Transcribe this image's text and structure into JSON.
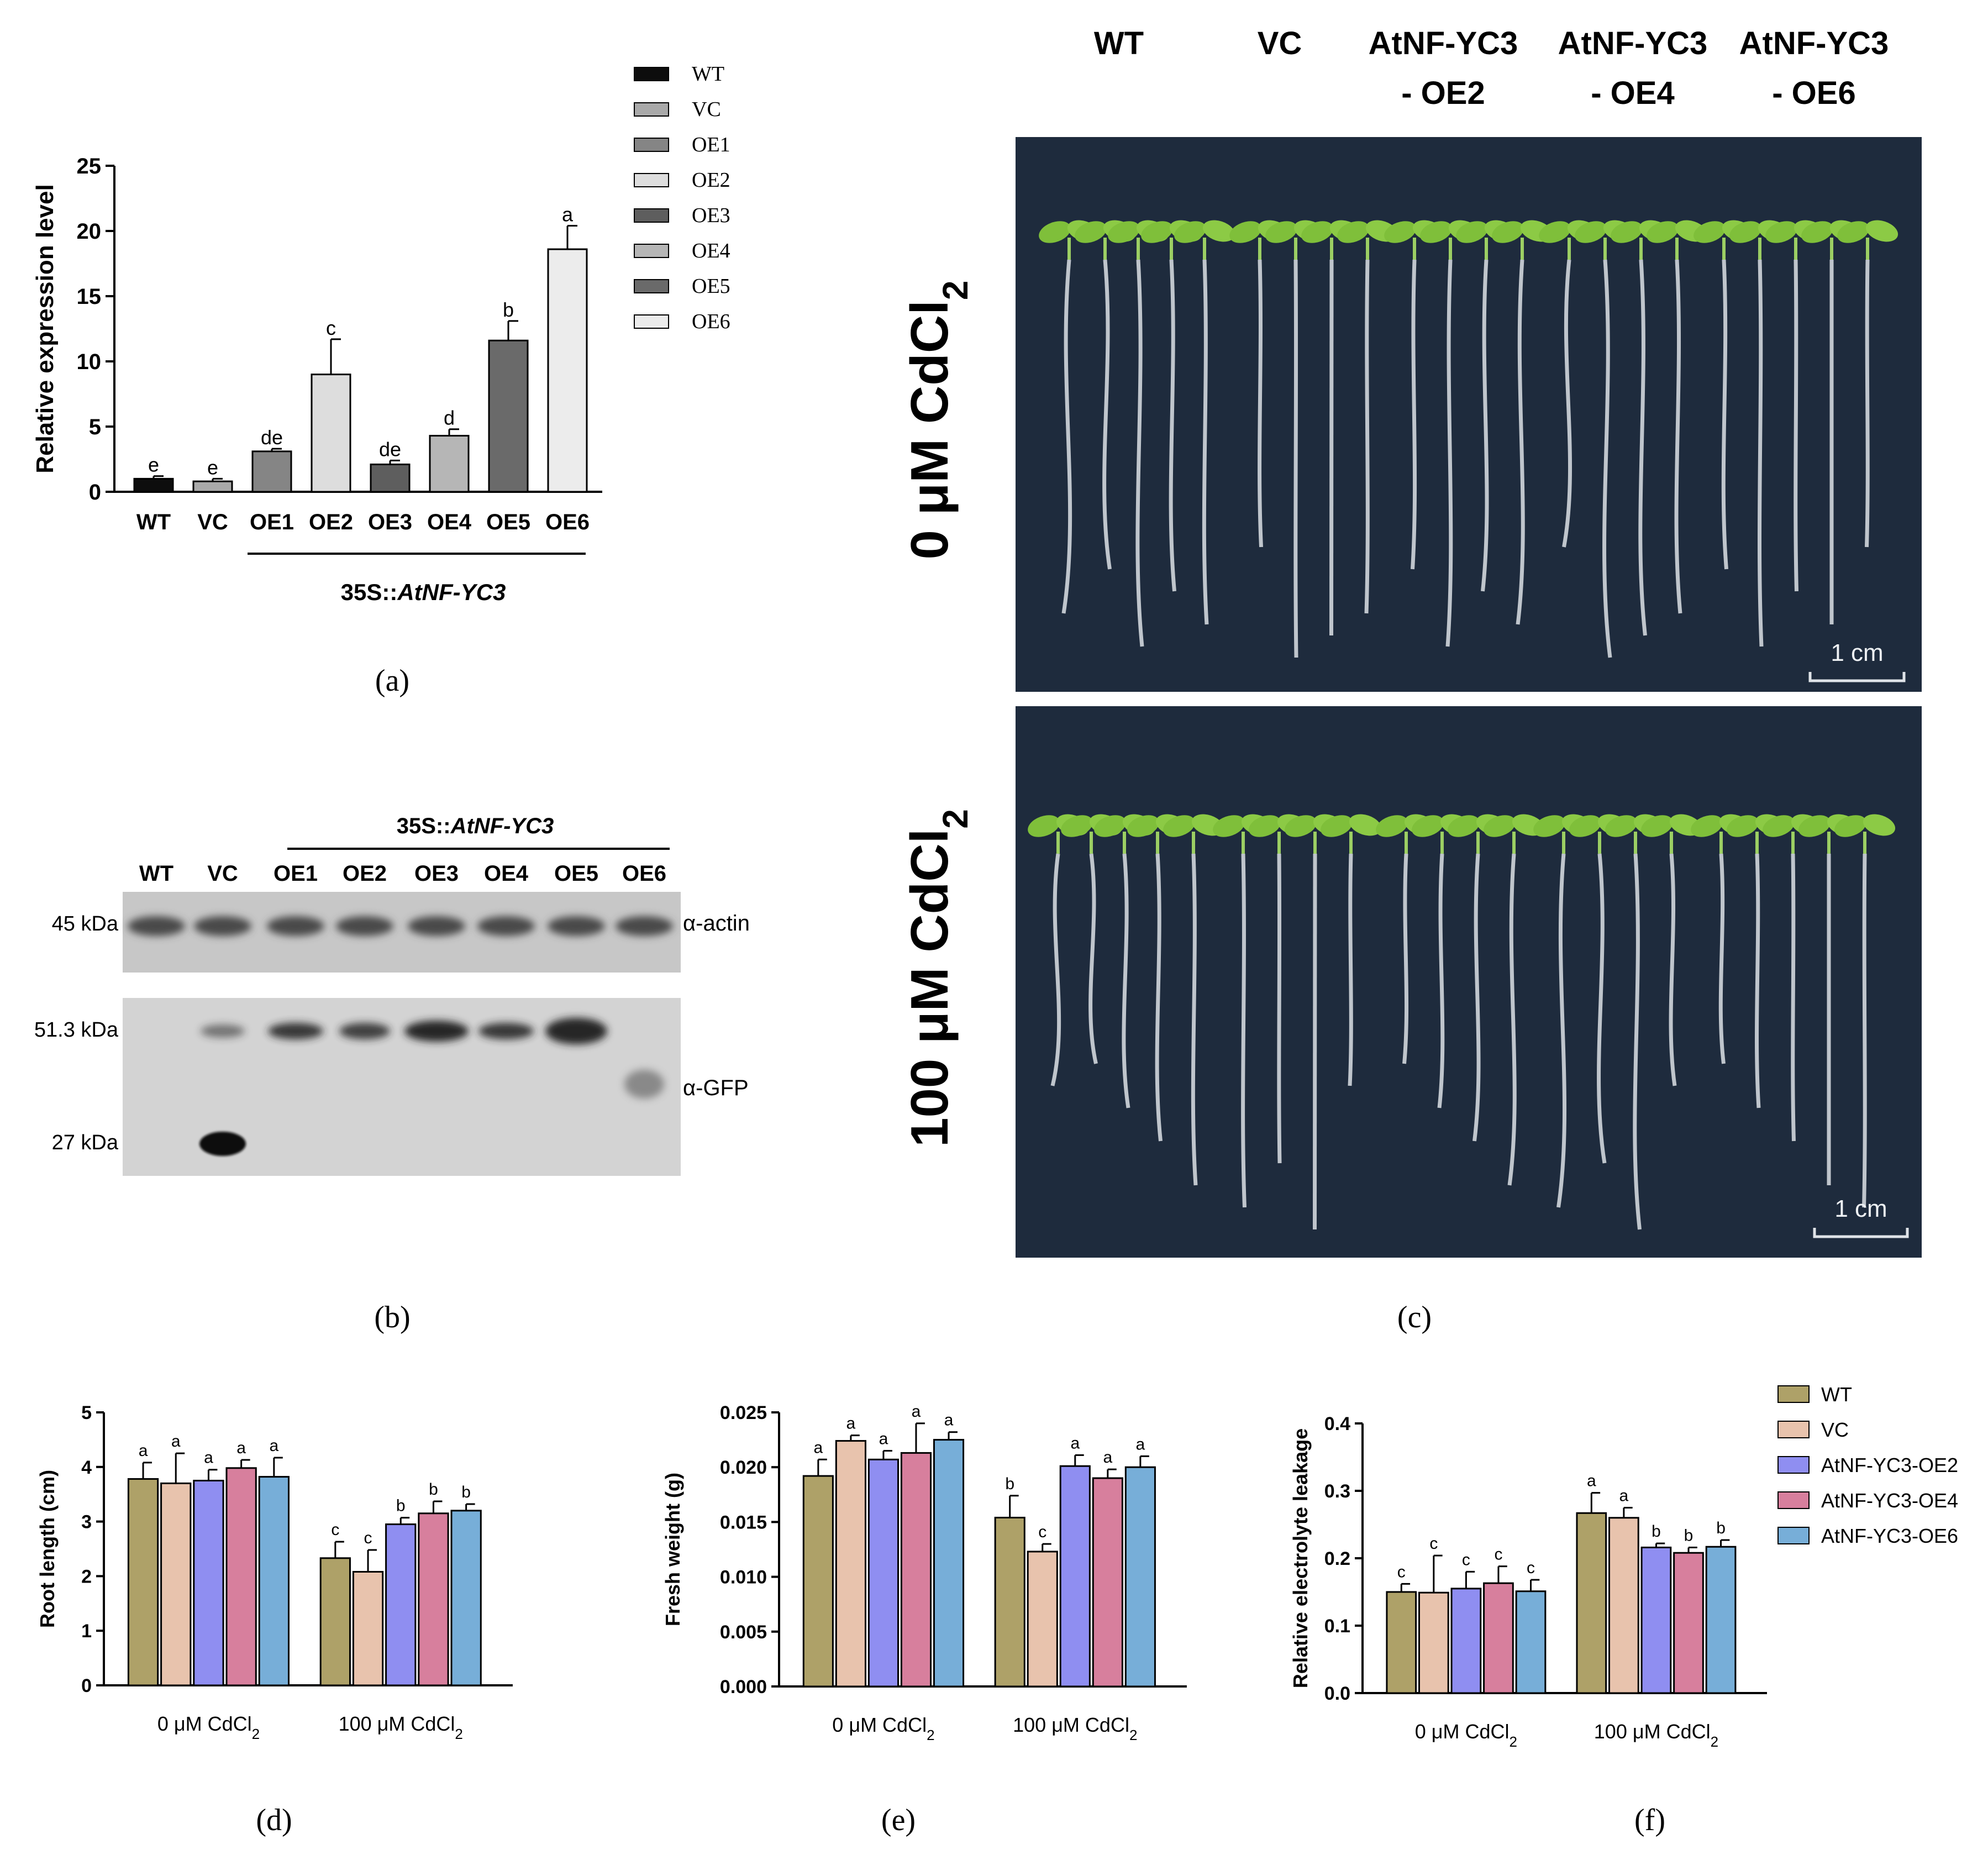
{
  "figure": {
    "panels": {
      "a": {
        "label": "(a)"
      },
      "b": {
        "label": "(b)"
      },
      "c": {
        "label": "(c)"
      },
      "d": {
        "label": "(d)"
      },
      "e": {
        "label": "(e)"
      },
      "f": {
        "label": "(f)"
      }
    }
  },
  "colors": {
    "wt": "#aea168",
    "vc": "#e8c3ad",
    "oe2": "#8f8ef1",
    "oe4": "#d77f9d",
    "oe6": "#77aed8",
    "plate": "#1e2b3d",
    "leaf": "#7fbf3a",
    "root": "#d0d6dc"
  },
  "panel_a": {
    "chart_data": {
      "type": "bar",
      "ylabel": "Relative expression level",
      "ylim": [
        0,
        25
      ],
      "yticks": [
        "0",
        "5",
        "10",
        "15",
        "20",
        "25"
      ],
      "categories": [
        "WT",
        "VC",
        "OE1",
        "OE2",
        "OE3",
        "OE4",
        "OE5",
        "OE6"
      ],
      "values": [
        1.0,
        0.8,
        3.1,
        9.0,
        2.1,
        4.3,
        11.6,
        18.6
      ],
      "errors": [
        0.2,
        0.2,
        0.2,
        2.7,
        0.3,
        0.5,
        1.5,
        1.8
      ],
      "letters": [
        "e",
        "e",
        "de",
        "c",
        "de",
        "d",
        "b",
        "a"
      ],
      "fills": [
        "#0d0d0d",
        "#a9a9a9",
        "#858585",
        "#dddddd",
        "#5e5e5e",
        "#b6b6b6",
        "#6a6a6a",
        "#ececec"
      ],
      "legend": [
        "WT",
        "VC",
        "OE1",
        "OE2",
        "OE3",
        "OE4",
        "OE5",
        "OE6"
      ],
      "group_label": "35S::",
      "group_label_italic": "AtNF-YC3"
    }
  },
  "panel_b": {
    "group_label": "35S::",
    "group_label_italic": "AtNF-YC3",
    "lanes": [
      "WT",
      "VC",
      "OE1",
      "OE2",
      "OE3",
      "OE4",
      "OE5",
      "OE6"
    ],
    "top_marker": "45 kDa",
    "top_antibody": "α-actin",
    "bottom_marker_1": "51.3 kDa",
    "bottom_marker_2": "27 kDa",
    "bottom_antibody": "α-GFP"
  },
  "panel_c": {
    "genotypes": [
      {
        "line1": "WT",
        "line2": ""
      },
      {
        "line1": "VC",
        "line2": ""
      },
      {
        "line1": "AtNF-YC3",
        "line2": "- OE2"
      },
      {
        "line1": "AtNF-YC3",
        "line2": "- OE4"
      },
      {
        "line1": "AtNF-YC3",
        "line2": "- OE6"
      }
    ],
    "row_top": {
      "text": "0 μM CdCl",
      "sub": "2"
    },
    "row_bottom": {
      "text": "100 μM CdCl",
      "sub": "2"
    },
    "scale_bar": "1 cm"
  },
  "panel_d": {
    "chart_data": {
      "type": "bar",
      "ylabel": "Root length (cm)",
      "ylim": [
        0,
        5
      ],
      "yticks": [
        "0",
        "1",
        "2",
        "3",
        "4",
        "5"
      ],
      "groups": [
        {
          "text": "0 μM CdCl",
          "sub": "2"
        },
        {
          "text": "100 μM CdCl",
          "sub": "2"
        }
      ],
      "series": [
        {
          "name": "WT",
          "values": [
            3.78,
            2.33
          ],
          "errors": [
            0.3,
            0.3
          ],
          "letters": [
            "a",
            "c"
          ]
        },
        {
          "name": "VC",
          "values": [
            3.7,
            2.08
          ],
          "errors": [
            0.55,
            0.4
          ],
          "letters": [
            "a",
            "c"
          ]
        },
        {
          "name": "AtNF-YC3-OE2",
          "values": [
            3.75,
            2.95
          ],
          "errors": [
            0.2,
            0.12
          ],
          "letters": [
            "a",
            "b"
          ]
        },
        {
          "name": "AtNF-YC3-OE4",
          "values": [
            3.98,
            3.15
          ],
          "errors": [
            0.15,
            0.22
          ],
          "letters": [
            "a",
            "b"
          ]
        },
        {
          "name": "AtNF-YC3-OE6",
          "values": [
            3.82,
            3.2
          ],
          "errors": [
            0.35,
            0.12
          ],
          "letters": [
            "a",
            "b"
          ]
        }
      ]
    }
  },
  "panel_e": {
    "chart_data": {
      "type": "bar",
      "ylabel": "Fresh weight (g)",
      "ylim": [
        0,
        0.025
      ],
      "yticks": [
        "0.000",
        "0.005",
        "0.010",
        "0.015",
        "0.020",
        "0.025"
      ],
      "groups": [
        {
          "text": "0 μM CdCl",
          "sub": "2"
        },
        {
          "text": "100 μM CdCl",
          "sub": "2"
        }
      ],
      "series": [
        {
          "name": "WT",
          "values": [
            0.0192,
            0.0154
          ],
          "errors": [
            0.0015,
            0.002
          ],
          "letters": [
            "a",
            "b"
          ]
        },
        {
          "name": "VC",
          "values": [
            0.0224,
            0.0123
          ],
          "errors": [
            0.0005,
            0.0007
          ],
          "letters": [
            "a",
            "c"
          ]
        },
        {
          "name": "AtNF-YC3-OE2",
          "values": [
            0.0207,
            0.0201
          ],
          "errors": [
            0.0008,
            0.001
          ],
          "letters": [
            "a",
            "a"
          ]
        },
        {
          "name": "AtNF-YC3-OE4",
          "values": [
            0.0213,
            0.019
          ],
          "errors": [
            0.0027,
            0.0008
          ],
          "letters": [
            "a",
            "a"
          ]
        },
        {
          "name": "AtNF-YC3-OE6",
          "values": [
            0.0225,
            0.02
          ],
          "errors": [
            0.0007,
            0.001
          ],
          "letters": [
            "a",
            "a"
          ]
        }
      ]
    }
  },
  "panel_f": {
    "chart_data": {
      "type": "bar",
      "ylabel": "Relative electrolyte leakage",
      "ylim": [
        0,
        0.4
      ],
      "yticks": [
        "0.0",
        "0.1",
        "0.2",
        "0.3",
        "0.4"
      ],
      "groups": [
        {
          "text": "0 μM CdCl",
          "sub": "2"
        },
        {
          "text": "100 μM CdCl",
          "sub": "2"
        }
      ],
      "series": [
        {
          "name": "WT",
          "values": [
            0.15,
            0.267
          ],
          "errors": [
            0.012,
            0.03
          ],
          "letters": [
            "c",
            "a"
          ]
        },
        {
          "name": "VC",
          "values": [
            0.149,
            0.26
          ],
          "errors": [
            0.055,
            0.015
          ],
          "letters": [
            "c",
            "a"
          ]
        },
        {
          "name": "AtNF-YC3-OE2",
          "values": [
            0.155,
            0.216
          ],
          "errors": [
            0.025,
            0.006
          ],
          "letters": [
            "c",
            "b"
          ]
        },
        {
          "name": "AtNF-YC3-OE4",
          "values": [
            0.163,
            0.208
          ],
          "errors": [
            0.025,
            0.008
          ],
          "letters": [
            "c",
            "b"
          ]
        },
        {
          "name": "AtNF-YC3-OE6",
          "values": [
            0.151,
            0.217
          ],
          "errors": [
            0.017,
            0.01
          ],
          "letters": [
            "c",
            "b"
          ]
        }
      ],
      "legend": [
        "WT",
        "VC",
        "AtNF-YC3-OE2",
        "AtNF-YC3-OE4",
        "AtNF-YC3-OE6"
      ]
    }
  }
}
